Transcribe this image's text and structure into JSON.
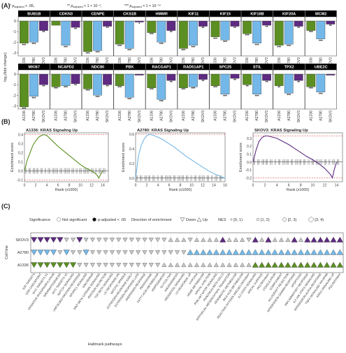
{
  "panels": {
    "a": "(A)",
    "b": "(B)",
    "c": "(C)"
  },
  "sig_legend": [
    {
      "sym": "*",
      "label": "p",
      "sub": "adjusted",
      "cond": " < .05,"
    },
    {
      "sym": "**",
      "label": "p",
      "sub": "adjusted",
      "cond": " < 1 × 10⁻⁵,"
    },
    {
      "sym": "***",
      "label": "p",
      "sub": "adjusted",
      "cond": " < 1 × 10⁻¹⁰"
    }
  ],
  "colors": {
    "A1336": "#5b8f22",
    "A2780": "#73b8e8",
    "SKOV3": "#5e2a82",
    "header_bg": "#000000",
    "header_text": "#ffffff",
    "ref_line": "#e05050",
    "not_sig": "#c8c8c8"
  },
  "chart_data": [
    {
      "type": "bar",
      "ylabel": "log₂(fold change)",
      "cell_lines": [
        "A1336",
        "A2780",
        "SKOV3"
      ],
      "ylim": [
        -3.3,
        0.4
      ],
      "yticks": [
        0,
        -1,
        -2,
        -3
      ],
      "genes": [
        {
          "name": "BUB1B",
          "values": [
            -2.1,
            -2.0,
            -0.9
          ],
          "stars": [
            "***",
            "***",
            "**"
          ]
        },
        {
          "name": "CDKN3",
          "values": [
            -0.4,
            -2.3,
            -0.6
          ],
          "stars": [
            "",
            "***",
            "**"
          ]
        },
        {
          "name": "CENPE",
          "values": [
            -2.9,
            -2.8,
            -0.5
          ],
          "stars": [
            "***",
            "***",
            "**"
          ]
        },
        {
          "name": "CKS1B",
          "values": [
            -2.2,
            -2.6,
            -0.1
          ],
          "stars": [
            "***",
            "***",
            "*"
          ]
        },
        {
          "name": "HMMR",
          "values": [
            -1.1,
            -2.0,
            -0.9
          ],
          "stars": [
            "***",
            "***",
            "**"
          ]
        },
        {
          "name": "KIF11",
          "values": [
            -2.6,
            -2.3,
            -0.5
          ],
          "stars": [
            "***",
            "***",
            "**"
          ]
        },
        {
          "name": "KIF15",
          "values": [
            -1.5,
            -1.8,
            -0.5
          ],
          "stars": [
            "***",
            "***",
            "**"
          ]
        },
        {
          "name": "KIF18B",
          "values": [
            -1.2,
            -2.1,
            -0.4
          ],
          "stars": [
            "***",
            "***",
            "**"
          ]
        },
        {
          "name": "KIF20A",
          "values": [
            -2.3,
            -2.2,
            -0.5
          ],
          "stars": [
            "***",
            "***",
            "**"
          ]
        },
        {
          "name": "MCM2",
          "values": [
            -0.9,
            -1.7,
            -0.3
          ],
          "stars": [
            "***",
            "***",
            "**"
          ]
        }
      ]
    },
    {
      "type": "bar",
      "ylabel": "log₂(fold change)",
      "cell_lines": [
        "A1336",
        "A2780",
        "SKOV3"
      ],
      "ylim": [
        -3.3,
        0.4
      ],
      "yticks": [
        0,
        -1,
        -2,
        -3
      ],
      "genes": [
        {
          "name": "MKI67",
          "values": [
            -3.1,
            -2.1,
            -1.0
          ],
          "stars": [
            "***",
            "***",
            "**"
          ]
        },
        {
          "name": "NCAPD2",
          "values": [
            -1.2,
            -1.1,
            -0.9
          ],
          "stars": [
            "***",
            "***",
            "**"
          ]
        },
        {
          "name": "NDC80",
          "values": [
            -1.4,
            -2.0,
            -1.0
          ],
          "stars": [
            "***",
            "***",
            "**"
          ]
        },
        {
          "name": "PBK",
          "values": [
            -1.1,
            -2.2,
            -0.1
          ],
          "stars": [
            "***",
            "***",
            ""
          ]
        },
        {
          "name": "RACGAP1",
          "values": [
            -1.3,
            -2.4,
            -0.6
          ],
          "stars": [
            "***",
            "***",
            "**"
          ]
        },
        {
          "name": "RAD51AP1",
          "values": [
            -1.3,
            -1.2,
            -0.5
          ],
          "stars": [
            "***",
            "***",
            "**"
          ]
        },
        {
          "name": "SPC25",
          "values": [
            -1.1,
            -1.9,
            -0.4
          ],
          "stars": [
            "***",
            "***",
            "**"
          ]
        },
        {
          "name": "STIL",
          "values": [
            -1.0,
            -1.9,
            -0.6
          ],
          "stars": [
            "**",
            "***",
            "**"
          ]
        },
        {
          "name": "TPX2",
          "values": [
            -1.1,
            -1.8,
            -0.6
          ],
          "stars": [
            "**",
            "***",
            "**"
          ]
        },
        {
          "name": "UBE2C",
          "values": [
            -1.2,
            -1.7,
            -0.1
          ],
          "stars": [
            "***",
            "***",
            ""
          ]
        }
      ]
    },
    {
      "type": "line",
      "title": "A1336: KRAS Signaling Up",
      "xlabel": "Rank (x1000)",
      "ylabel": "Enrichment score",
      "xlim": [
        0,
        15
      ],
      "ylim": [
        -0.12,
        0.42
      ],
      "xticks": [
        0,
        2,
        4,
        6,
        8,
        10,
        12,
        14
      ],
      "yticks": [
        0.4,
        0.3,
        0.2,
        0.1,
        0.0,
        -0.1
      ],
      "ref_lines": [
        0.4,
        -0.1
      ],
      "series": [
        {
          "x": [
            0,
            0.5,
            1,
            1.5,
            2,
            2.5,
            3,
            3.5,
            4,
            4.5,
            5,
            6,
            7,
            8,
            9,
            10,
            11,
            12,
            12.5,
            13,
            13.3,
            13.6,
            14
          ],
          "y": [
            0,
            0.12,
            0.2,
            0.28,
            0.33,
            0.37,
            0.39,
            0.4,
            0.39,
            0.36,
            0.33,
            0.27,
            0.22,
            0.17,
            0.12,
            0.07,
            0.03,
            0.0,
            -0.02,
            -0.05,
            -0.08,
            -0.04,
            0
          ]
        }
      ]
    },
    {
      "type": "line",
      "title": "A2780: KRAS Signaling Up",
      "xlabel": "Rank (x1000)",
      "ylabel": "Enrichment score",
      "xlim": [
        0,
        16
      ],
      "ylim": [
        -0.05,
        0.62
      ],
      "xticks": [
        0,
        2,
        4,
        6,
        8,
        10,
        12,
        14,
        16
      ],
      "yticks": [
        0.6,
        0.4,
        0.2,
        0.0
      ],
      "ref_lines": [
        0.6
      ],
      "series": [
        {
          "x": [
            0,
            0.5,
            1,
            1.5,
            2,
            2.5,
            3,
            4,
            5,
            6,
            7,
            8,
            9,
            10,
            11,
            12,
            13,
            14,
            15,
            15.5,
            16
          ],
          "y": [
            0,
            0.3,
            0.45,
            0.53,
            0.58,
            0.6,
            0.59,
            0.56,
            0.52,
            0.47,
            0.42,
            0.36,
            0.3,
            0.25,
            0.2,
            0.15,
            0.1,
            0.06,
            0.03,
            0.01,
            0
          ]
        }
      ]
    },
    {
      "type": "line",
      "title": "SKOV3: KRAS Signaling Up",
      "xlabel": "Rank (x1000)",
      "ylabel": "Enrichment score",
      "xlim": [
        0,
        15
      ],
      "ylim": [
        -0.25,
        0.37
      ],
      "xticks": [
        0,
        2,
        4,
        6,
        8,
        10,
        12,
        14
      ],
      "yticks": [
        0.3,
        0.2,
        0.1,
        0.0,
        -0.1,
        -0.2
      ],
      "ref_lines": [
        0.33,
        -0.2
      ],
      "series": [
        {
          "x": [
            0,
            0.5,
            1,
            1.5,
            2,
            2.5,
            3,
            4,
            5,
            6,
            7,
            8,
            9,
            10,
            11,
            12,
            12.5,
            13,
            13.3,
            13.6,
            14
          ],
          "y": [
            0,
            0.15,
            0.26,
            0.31,
            0.33,
            0.33,
            0.32,
            0.3,
            0.26,
            0.22,
            0.17,
            0.12,
            0.07,
            0.03,
            -0.02,
            -0.08,
            -0.12,
            -0.16,
            -0.2,
            -0.1,
            0
          ]
        }
      ]
    },
    {
      "type": "scatter",
      "xlabel": "Hallmark pathways",
      "ylabel": "Cell line",
      "rows": [
        "SKOV3",
        "A2780",
        "A1336"
      ],
      "pathways": [
        "E2F TARGETS",
        "G2M CHECKPOINT",
        "MYC TARGETS V1",
        "OXIDATIVE PHOSPHORYLATION",
        "SPERMATOGENESIS",
        "MYC TARGETS V2",
        "NOTCH SIGNALING",
        "UNFOLDED PROTEIN RESPONSE",
        "MTORC1 SIGNALING",
        "DNA REPAIR",
        "WNT BETA CATENIN SIGNALING",
        "PROTEIN SECRETION",
        "TGF BETA SIGNALING",
        "UV RESPONSE DN",
        "MITOTIC SPINDLE",
        "ESTROGEN RESPONSE EARLY",
        "ESTROGEN RESPONSE LATE",
        "ANDROGEN RESPONSE",
        "PEROXISOME",
        "FATTY ACID METABOLISM",
        "ADIPOGENESIS",
        "GLYCOLYSIS",
        "ANGIOGENESIS",
        "HEDGEHOG SIGNALING",
        "UV RESPONSE UP",
        "HYPOXIA",
        "HEME METABOLISM",
        "APICAL JUNCTION",
        "PI3K AKT MTOR SIGNALING",
        "PANCREAS BETA CELLS",
        "EPITHELIAL MESENCHYMAL TRANSITION",
        "XENOBIOTIC METABOLISM",
        "BILE ACID METABOLISM",
        "REACTIVE OXYGEN SPECIES PATHWAY",
        "IL2 STAT5 SIGNALING",
        "APICAL SURFACE",
        "P53 PATHWAY",
        "COAGULATION",
        "COMPLEMENT",
        "ALLOGRAFT REJECTION",
        "INTERFERON GAMMA RESPONSE",
        "APOPTOSIS",
        "INFLAMMATORY RESPONSE",
        "IL6 JAK STAT3 SIGNALING",
        "INTERFERON ALPHA RESPONSE",
        "TNFA SIGNALING VIA NFKB",
        "KRAS SIGNALING UP",
        "P53 PATHWAY 2"
      ],
      "pathway_labels_shown": [
        "E2F TARGETS",
        "G2M CHECKPOINT",
        "MYC TARGETS V1",
        "OXIDATIVE PHOSPHORYLATION",
        "SPERMATOGENESIS",
        "MYC TARGETS V2",
        "NOTCH SIGNALING",
        "UNFOLDED PROTEIN RESPONSE",
        "MTORC1 SIGNALING",
        "DNA REPAIR",
        "WNT BETA CATENIN SIGNALING",
        "PROTEIN SECRETION",
        "TGF BETA SIGNALING",
        "UV RESPONSE DN",
        "MITOTIC SPINDLE",
        "ESTROGEN RESPONSE EARLY",
        "ESTROGEN RESPONSE LATE",
        "ANDROGEN RESPONSE",
        "PEROXISOME",
        "FATTY ACID METABOLISM",
        "ADIPOGENESIS",
        "GLYCOLYSIS",
        "ANGIOGENESIS",
        "HEDGEHOG SIGNALING",
        "UV RESPONSE UP",
        "HYPOXIA",
        "HEME METABOLISM",
        "APICAL JUNCTION",
        "PI3K AKT MTOR SIGNALING",
        "PANCREAS BETA CELLS",
        "EPITHELIAL MESENCHYMAL TRANSITION",
        "XENOBIOTIC METABOLISM",
        "BILE ACID METABOLISM",
        "REACTIVE OXYGEN SPECIES PATHWAY",
        "IL2 STAT5 SIGNALING",
        "APICAL SURFACE",
        "P53 PATHWAY",
        "COAGULATION",
        "COMPLEMENT",
        "ALLOGRAFT REJECTION",
        "INTERFERON GAMMA RESPONSE",
        "APOPTOSIS",
        "INFLAMMATORY RESPONSE",
        "IL6 JAK STAT3 SIGNALING",
        "INTERFERON ALPHA RESPONSE",
        "TNFA SIGNALING VIA NFKB",
        "KRAS SIGNALING UP",
        "P53 PATHWAY"
      ],
      "cells": {
        "SKOV3": [
          "Ds",
          "Ds",
          "Ds",
          "Ds",
          "Ds",
          "Dn",
          "Dn",
          "Ds",
          "Dn",
          "Dn",
          "Dn",
          "Dn",
          "Dn",
          "Dn",
          "Dn",
          "Dn",
          "Dn",
          "Dn",
          "Dn",
          "Dn",
          "Dn",
          "Un",
          "Un",
          "Un",
          "Dn",
          "Un",
          "Un",
          "Un",
          "Un",
          "Us",
          "Un",
          "Un",
          "Un",
          "Dn",
          "Us",
          "Un",
          "Us",
          "Un",
          "Un",
          "Un",
          "Us",
          "Un",
          "Us",
          "Us",
          "Us",
          "Us",
          "Us",
          "Us"
        ],
        "A2780": [
          "Ds",
          "Ds",
          "Ds",
          "Ds",
          "Dn",
          "Ds",
          "Dn",
          "Dn",
          "Ds",
          "Dn",
          "Dn",
          "Dn",
          "Dn",
          "Dn",
          "Dn",
          "Dn",
          "Dn",
          "Dn",
          "Dn",
          "Dn",
          "Dn",
          "Dn",
          "Dn",
          "Dn",
          "Us",
          "Us",
          "Us",
          "Us",
          "Us",
          "Us",
          "Us",
          "Us",
          "Us",
          "Us",
          "Us",
          "Us",
          "Us",
          "Us",
          "Us",
          "Us",
          "Us",
          "Us",
          "Us",
          "Us",
          "Us",
          "Us",
          "Us",
          "Us"
        ],
        "A1336": [
          "Ds",
          "Ds",
          "Ds",
          "Ds",
          "Ds",
          "Ds",
          "Ds",
          "Dn",
          "Dn",
          "Dn",
          "Dn",
          "Dn",
          "Dn",
          "Dn",
          "Dn",
          "Dn",
          "Dn",
          "Dn",
          "Dn",
          "Dn",
          "Un",
          "Un",
          "Un",
          "Un",
          "Un",
          "Un",
          "Un",
          "Un",
          "Un",
          "Un",
          "Un",
          "Un",
          "Un",
          "Un",
          "Us",
          "Us",
          "Us",
          "Us",
          "Us",
          "Us",
          "Us",
          "Us",
          "Us",
          "Us",
          "Us",
          "Us",
          "Us",
          "Us"
        ]
      },
      "legend": {
        "significance_title": "Significance",
        "not_sig": "Not significant",
        "sig": "p-adjusted < .05",
        "direction_title": "Direction of enrichment",
        "down": "Down",
        "up": "Up",
        "nes_title": "NES",
        "nes_bins": [
          "[0, 1)",
          "[1, 2)",
          "[2, 3)",
          "[3, 4)"
        ]
      }
    }
  ]
}
